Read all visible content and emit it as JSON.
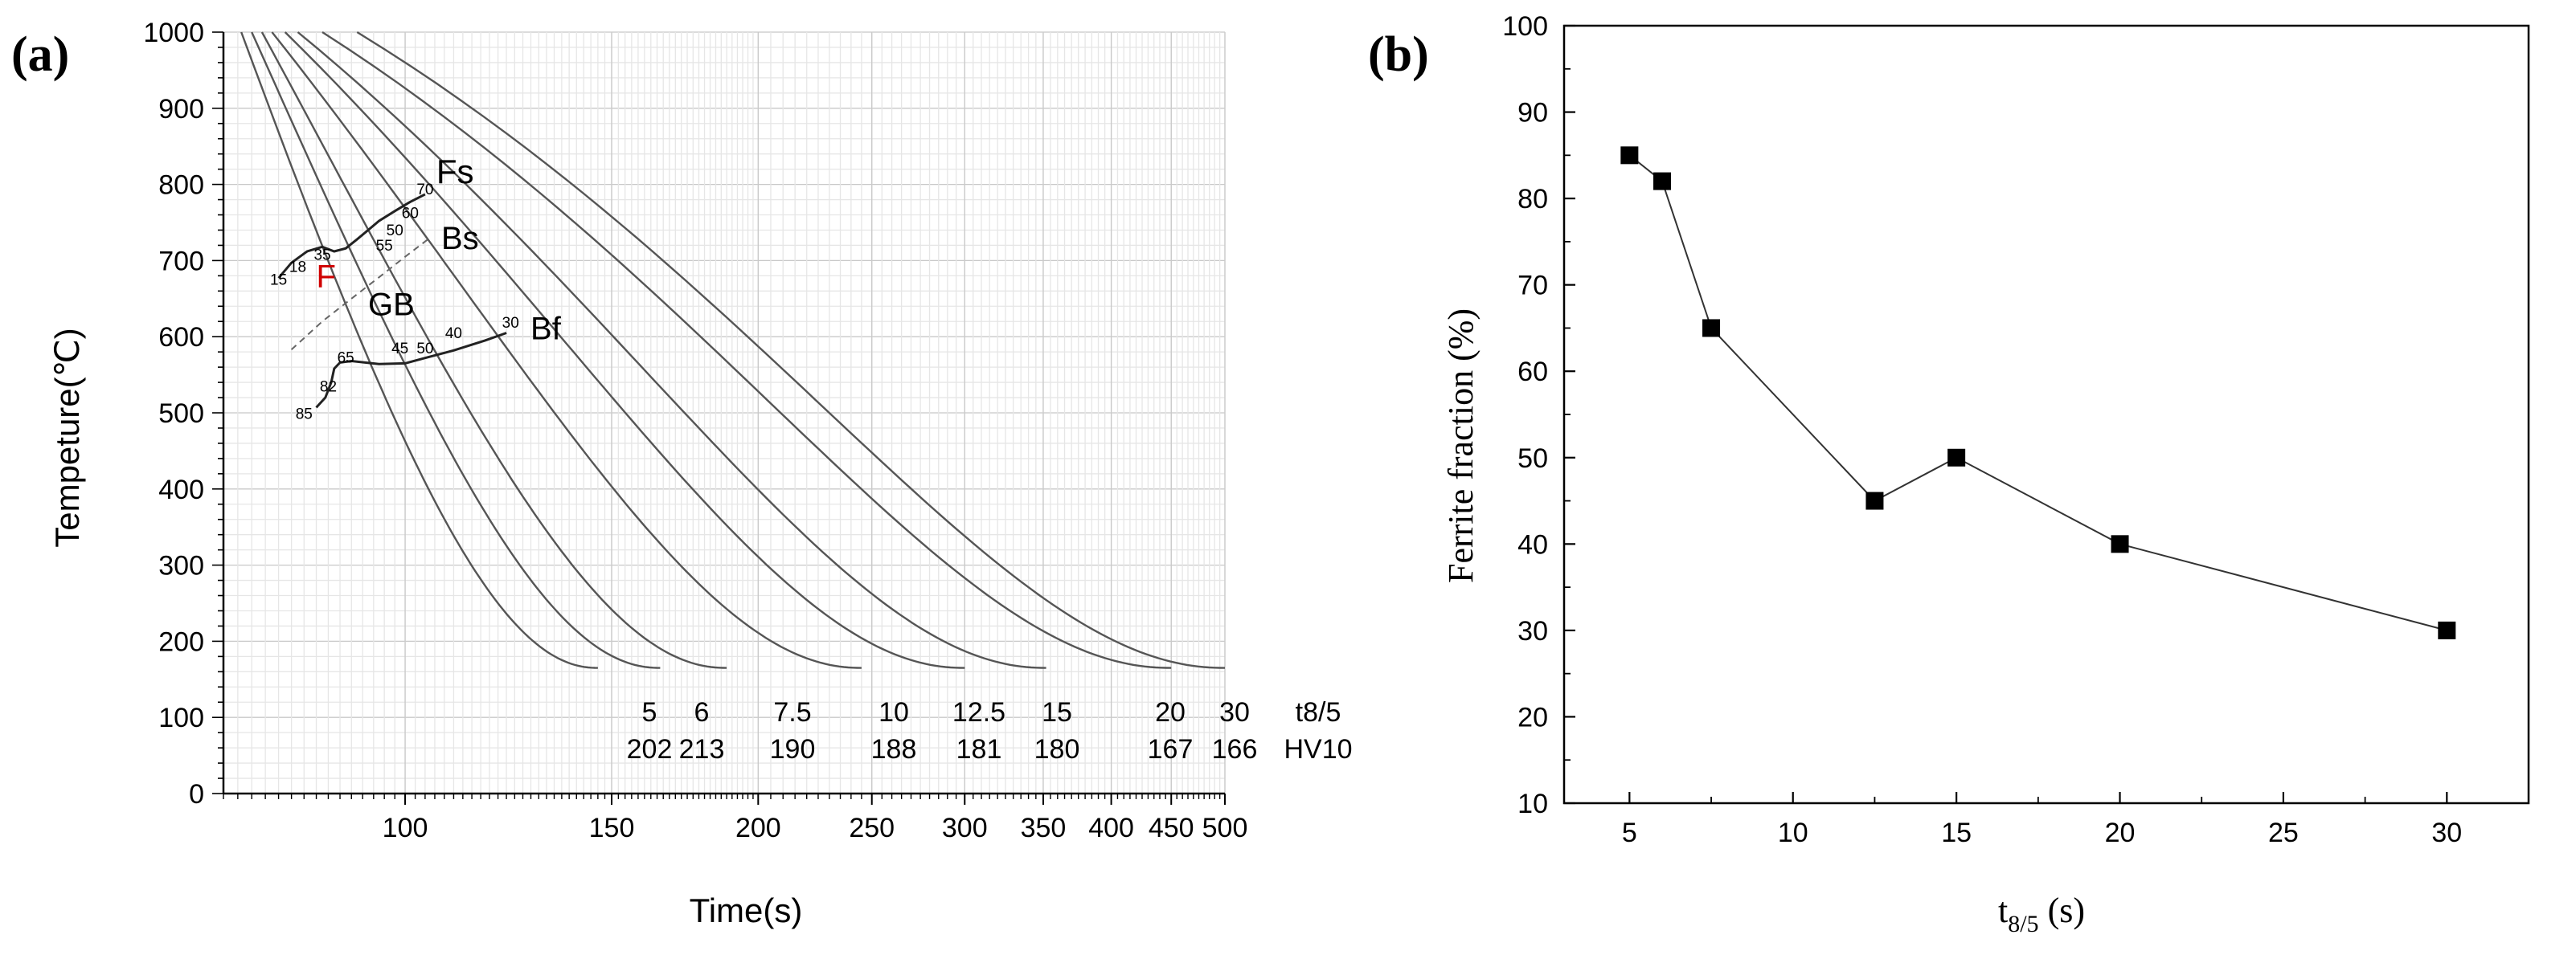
{
  "chart_data": [
    {
      "type": "line",
      "panel_label": "(a)",
      "title": "",
      "xlabel": "Time(s)",
      "ylabel": "Tempeture(℃)",
      "xscale": "log",
      "xlim": [
        70,
        500
      ],
      "ylim": [
        0,
        1000
      ],
      "x_ticks": [
        100,
        150,
        200,
        250,
        300,
        350,
        400,
        450,
        500
      ],
      "y_ticks": [
        0,
        100,
        200,
        300,
        400,
        500,
        600,
        700,
        800,
        900,
        1000
      ],
      "grid": true,
      "cooling_curves": [
        {
          "t85": 5,
          "hv10": 202,
          "t_1000": 72.5,
          "t_165": 146
        },
        {
          "t85": 6,
          "hv10": 213,
          "t_1000": 74,
          "t_165": 165
        },
        {
          "t85": 7.5,
          "hv10": 190,
          "t_1000": 75.5,
          "t_165": 188
        },
        {
          "t85": 10,
          "hv10": 188,
          "t_1000": 77,
          "t_165": 245
        },
        {
          "t85": 12.5,
          "hv10": 181,
          "t_1000": 79,
          "t_165": 300
        },
        {
          "t85": 15,
          "hv10": 180,
          "t_1000": 81,
          "t_165": 352
        },
        {
          "t85": 20,
          "hv10": 167,
          "t_1000": 85,
          "t_165": 450
        },
        {
          "t85": 30,
          "hv10": 166,
          "t_1000": 91,
          "t_165": 500
        }
      ],
      "row_labels": {
        "t85": "t8/5",
        "hv10": "HV10"
      },
      "phase_regions": [
        "F",
        "GB"
      ],
      "phase_lines": [
        {
          "name": "Fs",
          "label": "Fs",
          "points": [
            [
              78,
              677
            ],
            [
              80,
              697
            ],
            [
              82.5,
              712
            ],
            [
              85,
              718
            ],
            [
              87,
              712
            ],
            [
              89,
              716
            ],
            [
              91,
              728
            ],
            [
              93,
              740
            ],
            [
              95,
              752
            ],
            [
              98,
              765
            ],
            [
              101,
              777
            ],
            [
              104,
              787
            ]
          ]
        },
        {
          "name": "Bs",
          "label": "Bs",
          "dashed": true,
          "points": [
            [
              80,
              583
            ],
            [
              85,
              620
            ],
            [
              90,
              650
            ],
            [
              95,
              678
            ],
            [
              100,
              705
            ],
            [
              105,
              730
            ]
          ]
        },
        {
          "name": "Bf",
          "label": "Bf",
          "points": [
            [
              84,
              507
            ],
            [
              85.5,
              520
            ],
            [
              86.5,
              540
            ],
            [
              87,
              558
            ],
            [
              88,
              566
            ],
            [
              90,
              568
            ],
            [
              95,
              564
            ],
            [
              100,
              565
            ],
            [
              104,
              572
            ],
            [
              110,
              582
            ],
            [
              117,
              595
            ],
            [
              122,
              605
            ]
          ]
        }
      ],
      "point_labels": [
        {
          "text": "70",
          "x": 104,
          "y": 787
        },
        {
          "text": "60",
          "x": 101,
          "y": 756
        },
        {
          "text": "50",
          "x": 98,
          "y": 733
        },
        {
          "text": "55",
          "x": 96,
          "y": 713
        },
        {
          "text": "35",
          "x": 85,
          "y": 701
        },
        {
          "text": "18",
          "x": 81,
          "y": 685
        },
        {
          "text": "15",
          "x": 78,
          "y": 668
        },
        {
          "text": "40",
          "x": 110,
          "y": 598
        },
        {
          "text": "50",
          "x": 104,
          "y": 578
        },
        {
          "text": "45",
          "x": 99,
          "y": 578
        },
        {
          "text": "65",
          "x": 89,
          "y": 566
        },
        {
          "text": "82",
          "x": 86,
          "y": 528
        },
        {
          "text": "85",
          "x": 82,
          "y": 492
        },
        {
          "text": "30",
          "x": 123,
          "y": 612
        }
      ]
    },
    {
      "type": "line",
      "panel_label": "(b)",
      "title": "",
      "xlabel": "t8/5 (s)",
      "xlabel_main": "t",
      "xlabel_sub": "8/5",
      "xlabel_unit": " (s)",
      "ylabel": "Ferrite fraction (%)",
      "xlim": [
        3,
        32.5
      ],
      "ylim": [
        10,
        100
      ],
      "x_ticks": [
        5,
        10,
        15,
        20,
        25,
        30
      ],
      "y_ticks": [
        10,
        20,
        30,
        40,
        50,
        60,
        70,
        80,
        90,
        100
      ],
      "grid": false,
      "marker": "square",
      "x": [
        5,
        6,
        7.5,
        12.5,
        15,
        20,
        30
      ],
      "values": [
        85,
        82,
        65,
        45,
        50,
        40,
        30
      ]
    }
  ]
}
